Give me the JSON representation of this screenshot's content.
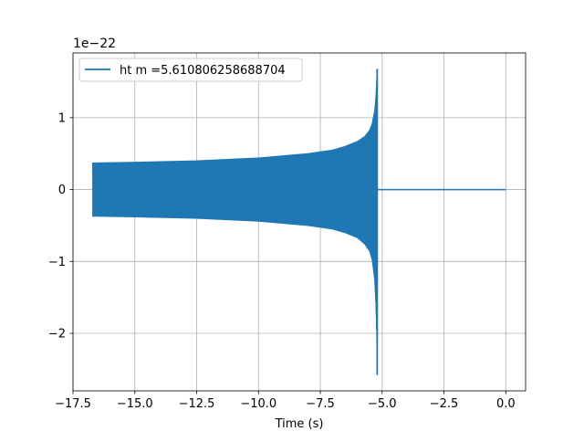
{
  "chart_data": {
    "type": "line",
    "title": "",
    "xlabel": "Time (s)",
    "ylabel": "",
    "offset_text": "1e−22",
    "scale_exponent": -22,
    "xlim": [
      -17.5,
      0.8
    ],
    "ylim": [
      -2.8,
      1.9
    ],
    "grid": true,
    "legend_position": "top-left",
    "x_ticks": [
      -17.5,
      -15.0,
      -12.5,
      -10.0,
      -7.5,
      -5.0,
      -2.5,
      0.0
    ],
    "x_tick_labels": [
      "−17.5",
      "−15.0",
      "−12.5",
      "−10.0",
      "−7.5",
      "−5.0",
      "−2.5",
      "0.0"
    ],
    "y_ticks": [
      1,
      0,
      -1,
      -2
    ],
    "y_tick_labels": [
      "1",
      "0",
      "−1",
      "−2"
    ],
    "series": [
      {
        "name": "ht m =5.610806258688704",
        "color": "#1f77b4",
        "chirp_start": -16.7,
        "merger_time": -5.2,
        "end_time": 0.0,
        "envelope": {
          "x": [
            -16.7,
            -15.0,
            -12.5,
            -10.0,
            -8.0,
            -7.0,
            -6.5,
            -6.0,
            -5.7,
            -5.5,
            -5.4,
            -5.3,
            -5.25,
            -5.22,
            -5.2
          ],
          "upper": [
            0.37,
            0.38,
            0.4,
            0.44,
            0.5,
            0.55,
            0.6,
            0.67,
            0.74,
            0.83,
            0.92,
            1.1,
            1.3,
            1.5,
            1.68
          ],
          "lower": [
            -0.37,
            -0.38,
            -0.4,
            -0.44,
            -0.5,
            -0.55,
            -0.6,
            -0.67,
            -0.76,
            -0.86,
            -0.98,
            -1.25,
            -1.6,
            -2.0,
            -2.58
          ]
        },
        "post_merger_value": 0.0
      }
    ]
  }
}
